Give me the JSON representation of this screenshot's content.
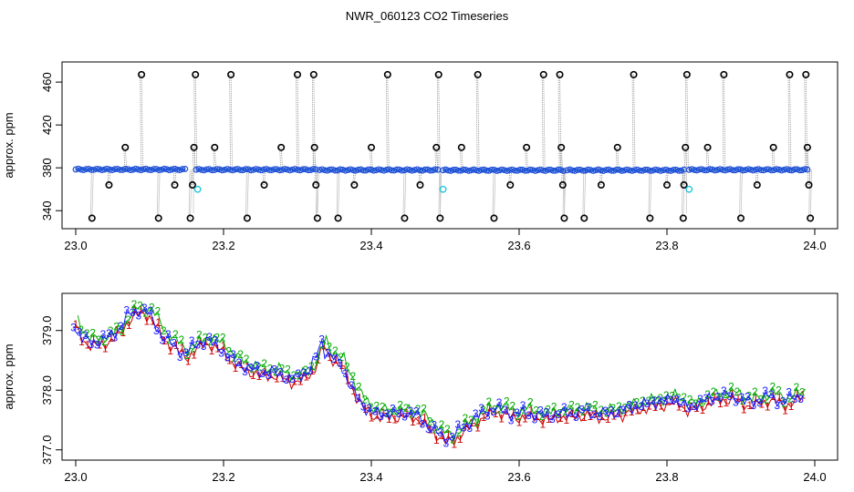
{
  "figure": {
    "title": "NWR_060123  CO2 Timeseries"
  },
  "chart_data": [
    {
      "type": "scatter",
      "title": "NWR_060123  CO2 Timeseries",
      "xlabel": "",
      "ylabel": "approx. ppm",
      "xlim": [
        23.0,
        24.0
      ],
      "ylim": [
        330,
        472
      ],
      "xticks": [
        23.0,
        23.2,
        23.4,
        23.6,
        23.8,
        24.0
      ],
      "xtick_labels": [
        "23.0",
        "23.2",
        "23.4",
        "23.6",
        "23.8",
        "24.0"
      ],
      "yticks": [
        340,
        380,
        420,
        460
      ],
      "ytick_labels": [
        "340",
        "380",
        "420",
        "460"
      ],
      "grid": false,
      "baseline_segments": [
        {
          "x0": 23.0,
          "x1": 23.148,
          "y": 378.5
        },
        {
          "x0": 23.163,
          "x1": 23.325,
          "y": 378.3
        },
        {
          "x0": 23.33,
          "x1": 23.49,
          "y": 378.0
        },
        {
          "x0": 23.497,
          "x1": 23.66,
          "y": 377.8
        },
        {
          "x0": 23.665,
          "x1": 23.823,
          "y": 377.8
        },
        {
          "x0": 23.83,
          "x1": 23.99,
          "y": 378.2
        }
      ],
      "outlier_points": [
        {
          "x": 23.022,
          "y": 333
        },
        {
          "x": 23.045,
          "y": 364
        },
        {
          "x": 23.067,
          "y": 399
        },
        {
          "x": 23.089,
          "y": 467
        },
        {
          "x": 23.112,
          "y": 333
        },
        {
          "x": 23.134,
          "y": 364
        },
        {
          "x": 23.155,
          "y": 333
        },
        {
          "x": 23.158,
          "y": 364
        },
        {
          "x": 23.16,
          "y": 399
        },
        {
          "x": 23.162,
          "y": 467
        },
        {
          "x": 23.188,
          "y": 399
        },
        {
          "x": 23.21,
          "y": 467
        },
        {
          "x": 23.232,
          "y": 333
        },
        {
          "x": 23.255,
          "y": 364
        },
        {
          "x": 23.278,
          "y": 399
        },
        {
          "x": 23.3,
          "y": 467
        },
        {
          "x": 23.322,
          "y": 467
        },
        {
          "x": 23.323,
          "y": 399
        },
        {
          "x": 23.325,
          "y": 364
        },
        {
          "x": 23.327,
          "y": 333
        },
        {
          "x": 23.355,
          "y": 333
        },
        {
          "x": 23.377,
          "y": 364
        },
        {
          "x": 23.4,
          "y": 399
        },
        {
          "x": 23.422,
          "y": 467
        },
        {
          "x": 23.445,
          "y": 333
        },
        {
          "x": 23.466,
          "y": 364
        },
        {
          "x": 23.488,
          "y": 399
        },
        {
          "x": 23.491,
          "y": 467
        },
        {
          "x": 23.493,
          "y": 333
        },
        {
          "x": 23.522,
          "y": 399
        },
        {
          "x": 23.544,
          "y": 467
        },
        {
          "x": 23.566,
          "y": 333
        },
        {
          "x": 23.588,
          "y": 364
        },
        {
          "x": 23.61,
          "y": 399
        },
        {
          "x": 23.633,
          "y": 467
        },
        {
          "x": 23.655,
          "y": 467
        },
        {
          "x": 23.657,
          "y": 399
        },
        {
          "x": 23.659,
          "y": 364
        },
        {
          "x": 23.661,
          "y": 333
        },
        {
          "x": 23.688,
          "y": 333
        },
        {
          "x": 23.711,
          "y": 364
        },
        {
          "x": 23.733,
          "y": 399
        },
        {
          "x": 23.755,
          "y": 467
        },
        {
          "x": 23.777,
          "y": 333
        },
        {
          "x": 23.8,
          "y": 364
        },
        {
          "x": 23.822,
          "y": 333
        },
        {
          "x": 23.823,
          "y": 364
        },
        {
          "x": 23.825,
          "y": 399
        },
        {
          "x": 23.827,
          "y": 467
        },
        {
          "x": 23.855,
          "y": 399
        },
        {
          "x": 23.877,
          "y": 467
        },
        {
          "x": 23.9,
          "y": 333
        },
        {
          "x": 23.922,
          "y": 364
        },
        {
          "x": 23.944,
          "y": 399
        },
        {
          "x": 23.966,
          "y": 467
        },
        {
          "x": 23.988,
          "y": 467
        },
        {
          "x": 23.99,
          "y": 399
        },
        {
          "x": 23.992,
          "y": 364
        },
        {
          "x": 23.994,
          "y": 333
        }
      ],
      "cyan_points": [
        {
          "x": 23.165,
          "y": 360
        },
        {
          "x": 23.497,
          "y": 360
        },
        {
          "x": 23.83,
          "y": 360
        }
      ]
    },
    {
      "type": "line",
      "title": "",
      "xlabel": "",
      "ylabel": "approx. ppm",
      "xlim": [
        23.0,
        24.0
      ],
      "ylim": [
        376.95,
        379.5
      ],
      "xticks": [
        23.0,
        23.2,
        23.4,
        23.6,
        23.8,
        24.0
      ],
      "xtick_labels": [
        "23.0",
        "23.2",
        "23.4",
        "23.6",
        "23.8",
        "24.0"
      ],
      "yticks": [
        377.0,
        378.0,
        379.0
      ],
      "ytick_labels": [
        "377.0",
        "378.0",
        "379.0"
      ],
      "grid": false,
      "base_curve": [
        [
          23.0,
          379.1
        ],
        [
          23.01,
          378.9
        ],
        [
          23.02,
          378.8
        ],
        [
          23.03,
          378.8
        ],
        [
          23.04,
          378.85
        ],
        [
          23.05,
          378.9
        ],
        [
          23.06,
          379.0
        ],
        [
          23.07,
          379.2
        ],
        [
          23.08,
          379.3
        ],
        [
          23.09,
          379.35
        ],
        [
          23.1,
          379.3
        ],
        [
          23.11,
          379.1
        ],
        [
          23.12,
          378.9
        ],
        [
          23.13,
          378.8
        ],
        [
          23.14,
          378.7
        ],
        [
          23.15,
          378.6
        ],
        [
          23.16,
          378.7
        ],
        [
          23.17,
          378.8
        ],
        [
          23.18,
          378.85
        ],
        [
          23.19,
          378.75
        ],
        [
          23.2,
          378.7
        ],
        [
          23.21,
          378.55
        ],
        [
          23.22,
          378.45
        ],
        [
          23.23,
          378.4
        ],
        [
          23.24,
          378.35
        ],
        [
          23.25,
          378.3
        ],
        [
          23.26,
          378.3
        ],
        [
          23.27,
          378.3
        ],
        [
          23.28,
          378.25
        ],
        [
          23.29,
          378.2
        ],
        [
          23.3,
          378.2
        ],
        [
          23.31,
          378.25
        ],
        [
          23.32,
          378.35
        ],
        [
          23.33,
          378.6
        ],
        [
          23.335,
          378.85
        ],
        [
          23.34,
          378.65
        ],
        [
          23.35,
          378.55
        ],
        [
          23.36,
          378.45
        ],
        [
          23.37,
          378.2
        ],
        [
          23.38,
          377.95
        ],
        [
          23.39,
          377.75
        ],
        [
          23.4,
          377.65
        ],
        [
          23.41,
          377.6
        ],
        [
          23.42,
          377.6
        ],
        [
          23.43,
          377.62
        ],
        [
          23.44,
          377.6
        ],
        [
          23.45,
          377.62
        ],
        [
          23.46,
          377.6
        ],
        [
          23.47,
          377.5
        ],
        [
          23.48,
          377.4
        ],
        [
          23.49,
          377.3
        ],
        [
          23.5,
          377.2
        ],
        [
          23.51,
          377.2
        ],
        [
          23.52,
          377.3
        ],
        [
          23.53,
          377.4
        ],
        [
          23.54,
          377.5
        ],
        [
          23.55,
          377.58
        ],
        [
          23.56,
          377.65
        ],
        [
          23.57,
          377.7
        ],
        [
          23.58,
          377.65
        ],
        [
          23.59,
          377.6
        ],
        [
          23.6,
          377.6
        ],
        [
          23.61,
          377.62
        ],
        [
          23.62,
          377.6
        ],
        [
          23.63,
          377.58
        ],
        [
          23.64,
          377.55
        ],
        [
          23.65,
          377.6
        ],
        [
          23.66,
          377.62
        ],
        [
          23.67,
          377.6
        ],
        [
          23.68,
          377.62
        ],
        [
          23.69,
          377.65
        ],
        [
          23.7,
          377.62
        ],
        [
          23.71,
          377.6
        ],
        [
          23.72,
          377.6
        ],
        [
          23.73,
          377.62
        ],
        [
          23.74,
          377.65
        ],
        [
          23.75,
          377.7
        ],
        [
          23.76,
          377.72
        ],
        [
          23.77,
          377.75
        ],
        [
          23.78,
          377.78
        ],
        [
          23.79,
          377.8
        ],
        [
          23.8,
          377.82
        ],
        [
          23.81,
          377.85
        ],
        [
          23.82,
          377.8
        ],
        [
          23.83,
          377.7
        ],
        [
          23.84,
          377.75
        ],
        [
          23.85,
          377.8
        ],
        [
          23.86,
          377.85
        ],
        [
          23.87,
          377.88
        ],
        [
          23.88,
          377.9
        ],
        [
          23.89,
          377.9
        ],
        [
          23.9,
          377.85
        ],
        [
          23.91,
          377.8
        ],
        [
          23.92,
          377.8
        ],
        [
          23.93,
          377.85
        ],
        [
          23.94,
          377.9
        ],
        [
          23.95,
          377.85
        ],
        [
          23.96,
          377.8
        ],
        [
          23.97,
          377.85
        ],
        [
          23.98,
          377.9
        ],
        [
          23.985,
          377.95
        ]
      ],
      "series": [
        {
          "label": "1",
          "color": "#cc0000",
          "dx": 0.0,
          "dy": -0.06,
          "values_from": "base_curve"
        },
        {
          "label": "2",
          "color": "#00aa00",
          "dx": 0.003,
          "dy": 0.06,
          "values_from": "base_curve"
        },
        {
          "label": "3",
          "color": "#1a1aff",
          "dx": -0.003,
          "dy": 0.0,
          "values_from": "base_curve"
        }
      ]
    }
  ]
}
